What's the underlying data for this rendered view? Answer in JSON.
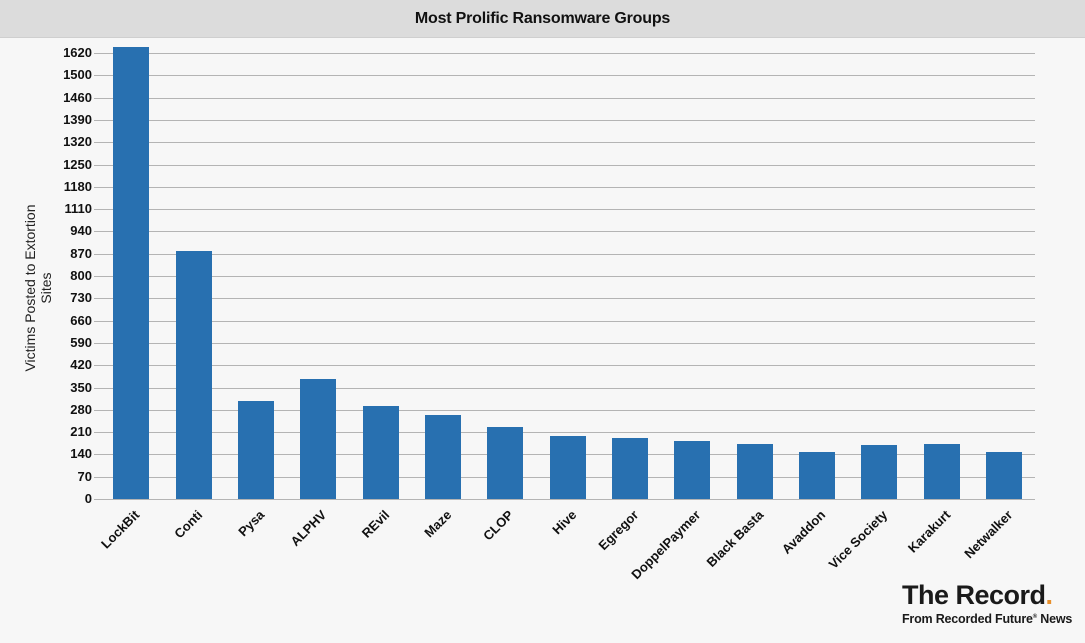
{
  "header": {
    "title": "Most Prolific Ransomware Groups"
  },
  "logo": {
    "brand": "The Record",
    "brand_dot": ".",
    "sub_pre": "From Recorded Future",
    "sub_reg": "®",
    "sub_post": " News"
  },
  "colors": {
    "bar": "#2870b0",
    "title_bg": "#dcdcdc",
    "background": "#f7f7f7",
    "logo_accent": "#e8902c"
  },
  "chart_data": {
    "type": "bar",
    "title": "Most Prolific Ransomware Groups",
    "xlabel": "",
    "ylabel": "Victims Posted to Extortion Sites",
    "y_ticks": [
      0,
      70,
      140,
      210,
      280,
      350,
      420,
      590,
      660,
      730,
      800,
      870,
      940,
      1110,
      1180,
      1250,
      1320,
      1390,
      1460,
      1500,
      1620
    ],
    "y_axis_note": "tick labels are unevenly valued but evenly spaced (broken/nonlinear axis)",
    "grid": true,
    "legend": "none",
    "categories": [
      "LockBit",
      "Conti",
      "Pysa",
      "ALPHV",
      "REvil",
      "Maze",
      "CLOP",
      "Hive",
      "Egregor",
      "DoppelPaymer",
      "Black Basta",
      "Avaddon",
      "Vice Society",
      "Karakurt",
      "Netwalker"
    ],
    "values": [
      1650,
      880,
      308,
      378,
      293,
      263,
      226,
      199,
      193,
      181,
      174,
      149,
      171,
      174,
      146
    ]
  }
}
